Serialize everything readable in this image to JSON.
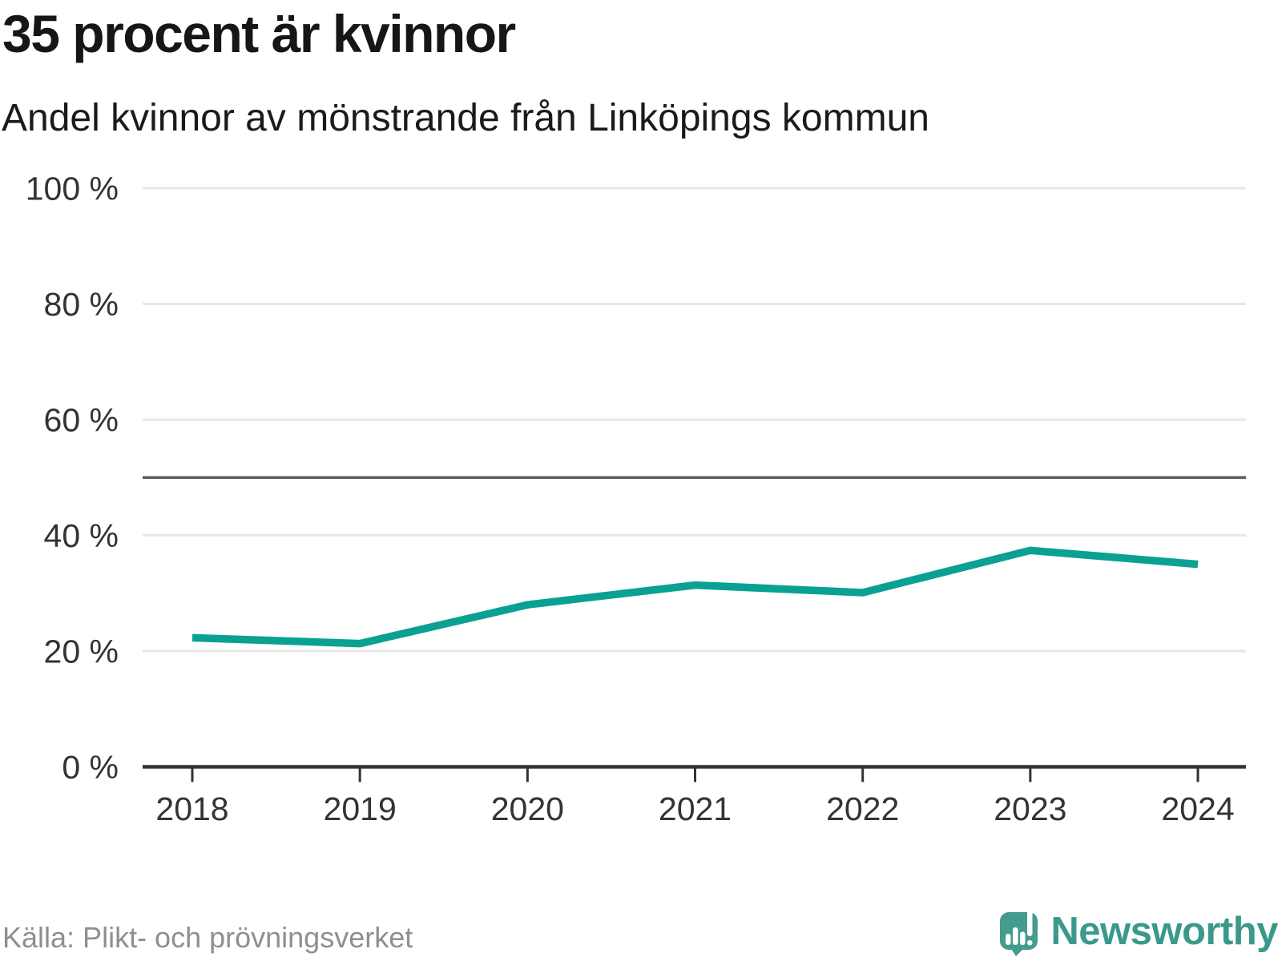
{
  "header": {
    "title": "35 procent är kvinnor",
    "subtitle": "Andel kvinnor av mönstrande från Linköpings kommun"
  },
  "chart_data": {
    "type": "line",
    "title": "35 procent är kvinnor",
    "subtitle": "Andel kvinnor av mönstrande från Linköpings kommun",
    "x": [
      2018,
      2019,
      2020,
      2021,
      2022,
      2023,
      2024
    ],
    "x_tick_labels": [
      "2018",
      "2019",
      "2020",
      "2021",
      "2022",
      "2023",
      "2024"
    ],
    "series": [
      {
        "name": "Andel kvinnor av mönstrande",
        "values": [
          22.3,
          21.3,
          28.0,
          31.4,
          30.1,
          37.4,
          35.0
        ]
      }
    ],
    "y_ticks": [
      {
        "value": 0,
        "label": "0 %"
      },
      {
        "value": 20,
        "label": "20 %"
      },
      {
        "value": 40,
        "label": "40 %"
      },
      {
        "value": 60,
        "label": "60 %"
      },
      {
        "value": 80,
        "label": "80 %"
      },
      {
        "value": 100,
        "label": "100 %"
      }
    ],
    "ylim": [
      0,
      100
    ],
    "reference_line": {
      "value": 50
    },
    "grid": "horizontal",
    "legend": "none"
  },
  "footer": {
    "source": "Källa: Plikt- och prövningsverket",
    "brand": {
      "name": "Newsworthy"
    }
  },
  "colors": {
    "line": "#0aa193",
    "grid": "#e7e7e7",
    "axis": "#333333",
    "tick": "#333333",
    "tick_label": "#333333",
    "reference_line": "#5f5f5f",
    "title": "#161616",
    "subtitle": "#1a1a1a",
    "source": "#8f8f8f",
    "brand_text": "#3b998c",
    "brand_icon": "#459b8e"
  }
}
